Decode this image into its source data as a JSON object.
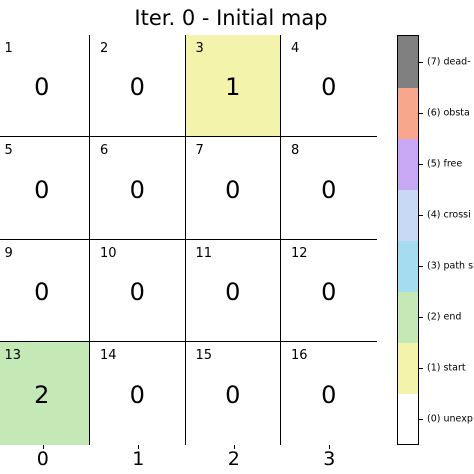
{
  "title": "Iter. 0 - Initial map",
  "grid": {
    "rows": 4,
    "cols": 4,
    "cells": [
      {
        "id": "1",
        "value": "0",
        "state": 0
      },
      {
        "id": "2",
        "value": "0",
        "state": 0
      },
      {
        "id": "3",
        "value": "1",
        "state": 1
      },
      {
        "id": "4",
        "value": "0",
        "state": 0
      },
      {
        "id": "5",
        "value": "0",
        "state": 0
      },
      {
        "id": "6",
        "value": "0",
        "state": 0
      },
      {
        "id": "7",
        "value": "0",
        "state": 0
      },
      {
        "id": "8",
        "value": "0",
        "state": 0
      },
      {
        "id": "9",
        "value": "0",
        "state": 0
      },
      {
        "id": "10",
        "value": "0",
        "state": 0
      },
      {
        "id": "11",
        "value": "0",
        "state": 0
      },
      {
        "id": "12",
        "value": "0",
        "state": 0
      },
      {
        "id": "13",
        "value": "2",
        "state": 2
      },
      {
        "id": "14",
        "value": "0",
        "state": 0
      },
      {
        "id": "15",
        "value": "0",
        "state": 0
      },
      {
        "id": "16",
        "value": "0",
        "state": 0
      }
    ]
  },
  "x_ticks": [
    "0",
    "1",
    "2",
    "3"
  ],
  "colorbar": {
    "levels": [
      {
        "label": "(0) unexp",
        "color": "#ffffff"
      },
      {
        "label": "(1) start",
        "color": "#f3f3ab"
      },
      {
        "label": "(2) end",
        "color": "#c5e8b7"
      },
      {
        "label": "(3) path s",
        "color": "#a5dcf0"
      },
      {
        "label": "(4) crossi",
        "color": "#c7d9f5"
      },
      {
        "label": "(5) free",
        "color": "#c9a9f5"
      },
      {
        "label": "(6) obsta",
        "color": "#f7a88c"
      },
      {
        "label": "(7) dead-",
        "color": "#808080"
      }
    ]
  }
}
